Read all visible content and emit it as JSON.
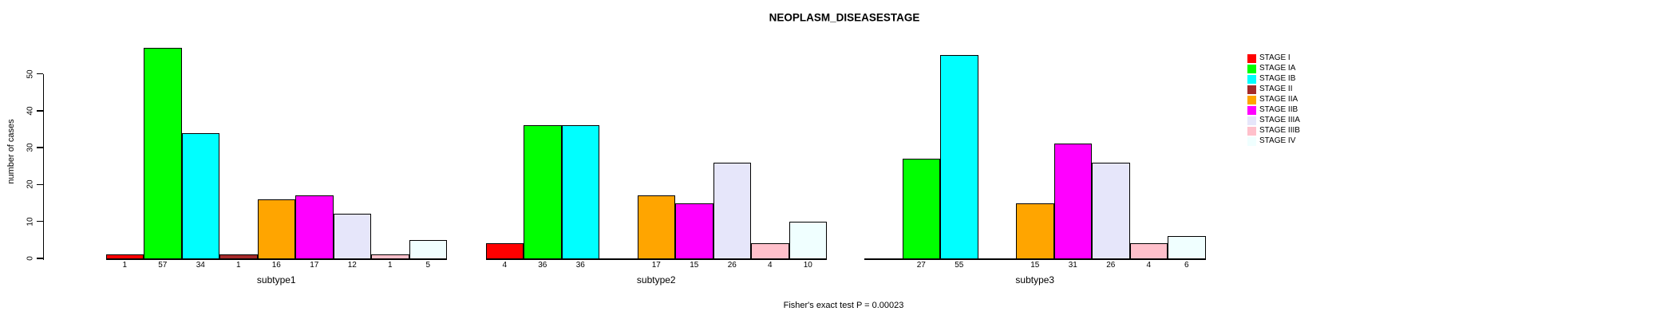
{
  "chart_data": {
    "type": "bar",
    "title": "NEOPLASM_DISEASESTAGE",
    "ylabel": "number of cases",
    "footnote": "Fisher's exact test P = 0.00023",
    "ylim": [
      0,
      57
    ],
    "yticks": [
      0,
      10,
      20,
      30,
      40,
      50
    ],
    "grid": false,
    "legend_position": "right",
    "legend": [
      {
        "label": "STAGE I",
        "color": "#FF0000"
      },
      {
        "label": "STAGE IA",
        "color": "#00FF00"
      },
      {
        "label": "STAGE IB",
        "color": "#00FFFF"
      },
      {
        "label": "STAGE II",
        "color": "#A52A2A"
      },
      {
        "label": "STAGE IIA",
        "color": "#FFA500"
      },
      {
        "label": "STAGE IIB",
        "color": "#FF00FF"
      },
      {
        "label": "STAGE IIIA",
        "color": "#E6E6FA"
      },
      {
        "label": "STAGE IIIB",
        "color": "#FFC0CB"
      },
      {
        "label": "STAGE IV",
        "color": "#F0FFFF"
      }
    ],
    "categories": [
      "subtype1",
      "subtype2",
      "subtype3"
    ],
    "series": [
      {
        "name": "STAGE I",
        "values": [
          1,
          4,
          null
        ]
      },
      {
        "name": "STAGE IA",
        "values": [
          57,
          36,
          27
        ]
      },
      {
        "name": "STAGE IB",
        "values": [
          34,
          36,
          55
        ]
      },
      {
        "name": "STAGE II",
        "values": [
          1,
          null,
          null
        ]
      },
      {
        "name": "STAGE IIA",
        "values": [
          16,
          17,
          15
        ]
      },
      {
        "name": "STAGE IIB",
        "values": [
          17,
          15,
          31
        ]
      },
      {
        "name": "STAGE IIIA",
        "values": [
          12,
          26,
          26
        ]
      },
      {
        "name": "STAGE IIIB",
        "values": [
          1,
          4,
          4
        ]
      },
      {
        "name": "STAGE IV",
        "values": [
          5,
          10,
          6
        ]
      }
    ]
  }
}
